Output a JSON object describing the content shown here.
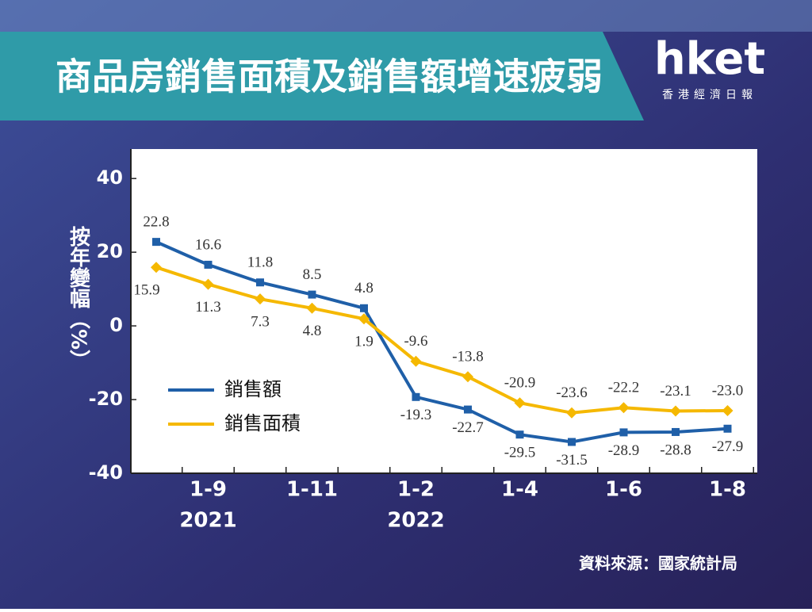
{
  "header": {
    "title": "商品房銷售面積及銷售額增速疲弱",
    "logo": "hket",
    "logo_sub": "香港經濟日報"
  },
  "chart_data": {
    "type": "line",
    "y_label": "按年變幅（%）",
    "categories": [
      null,
      "1-9",
      null,
      "1-11",
      null,
      "1-2",
      null,
      "1-4",
      null,
      "1-6",
      null,
      "1-8"
    ],
    "category_years": [
      null,
      "2021",
      null,
      null,
      null,
      "2022",
      null,
      null,
      null,
      null,
      null,
      null
    ],
    "series": [
      {
        "name": "銷售額",
        "color": "#1f5fa8",
        "values": [
          22.8,
          16.6,
          11.8,
          8.5,
          4.8,
          -19.3,
          -22.7,
          -29.5,
          -31.5,
          -28.9,
          -28.8,
          -27.9
        ]
      },
      {
        "name": "銷售面積",
        "color": "#f5b800",
        "values": [
          15.9,
          11.3,
          7.3,
          4.8,
          1.9,
          -9.6,
          -13.8,
          -20.9,
          -23.6,
          -22.2,
          -23.1,
          -23.0
        ],
        "value_labels": [
          "15.9",
          "11.3",
          "7.3",
          "4.8",
          "1.9",
          "-9.6",
          "-13.8",
          "-20.9",
          "-23.6",
          "-22.2",
          "-23.1",
          "-23.0"
        ]
      }
    ],
    "ylim": [
      -40,
      48
    ],
    "yticks": [
      -40,
      -20,
      0,
      20,
      40
    ],
    "source": "資料來源：國家統計局"
  }
}
